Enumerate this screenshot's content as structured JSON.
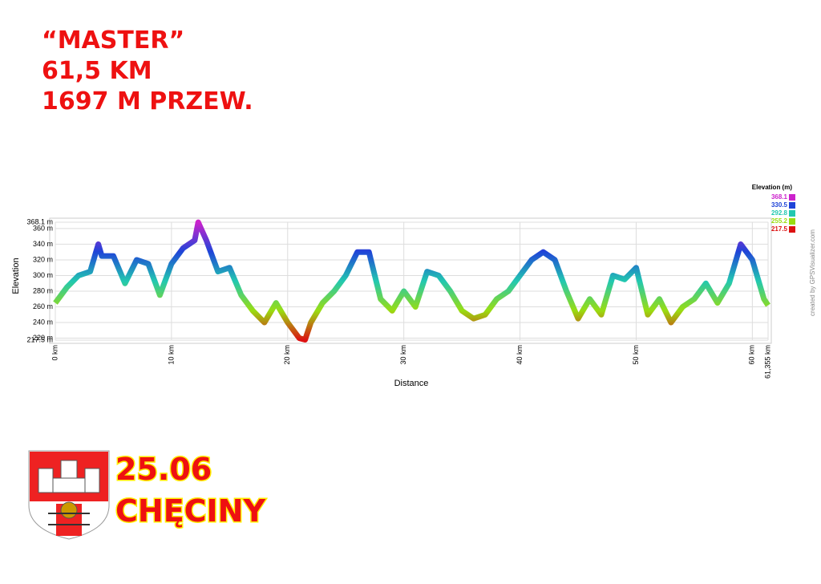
{
  "header": {
    "lines": [
      "“MASTER”",
      "61,5 KM",
      "1697 M PRZEW."
    ]
  },
  "footer": {
    "date": "25.06",
    "place": "CHĘCINY"
  },
  "chart_data": {
    "type": "line",
    "x_label": "Distance",
    "y_label": "Elevation",
    "credit": "created by GPSVisualizer.com",
    "x": [
      0,
      1,
      2,
      3,
      3.7,
      4,
      5,
      6,
      7,
      8,
      9,
      10,
      11,
      12,
      12.3,
      13,
      14,
      15,
      16,
      17,
      18,
      19,
      20,
      21,
      21.5,
      22,
      23,
      24,
      25,
      26,
      27,
      28,
      29,
      30,
      31,
      32,
      33,
      34,
      35,
      36,
      37,
      38,
      39,
      40,
      41,
      42,
      43,
      44,
      45,
      46,
      47,
      48,
      49,
      50,
      51,
      52,
      53,
      54,
      55,
      56,
      57,
      58,
      59,
      60,
      61,
      61.355
    ],
    "series": [
      {
        "values": [
          265,
          285,
          300,
          305,
          340,
          325,
          325,
          290,
          320,
          315,
          275,
          315,
          335,
          345,
          368,
          345,
          305,
          310,
          275,
          255,
          240,
          265,
          240,
          220,
          218,
          240,
          265,
          280,
          300,
          330,
          330,
          270,
          255,
          280,
          260,
          305,
          300,
          280,
          255,
          245,
          250,
          270,
          280,
          300,
          320,
          330,
          320,
          280,
          245,
          270,
          250,
          300,
          295,
          310,
          250,
          270,
          240,
          260,
          270,
          290,
          265,
          290,
          340,
          320,
          270,
          262
        ]
      }
    ],
    "xlim": [
      0,
      61.355
    ],
    "ylim": [
      217.5,
      368.1
    ],
    "xticks": [
      {
        "value": 0,
        "label": "0 km"
      },
      {
        "value": 10,
        "label": "10 km"
      },
      {
        "value": 20,
        "label": "20 km"
      },
      {
        "value": 30,
        "label": "30 km"
      },
      {
        "value": 40,
        "label": "40 km"
      },
      {
        "value": 50,
        "label": "50 km"
      },
      {
        "value": 60,
        "label": "60 km"
      },
      {
        "value": 61.355,
        "label": "61,355 km"
      }
    ],
    "yticks": [
      {
        "value": 217.5,
        "label": "217.5 m"
      },
      {
        "value": 220,
        "label": "220 m"
      },
      {
        "value": 240,
        "label": "240 m"
      },
      {
        "value": 260,
        "label": "260 m"
      },
      {
        "value": 280,
        "label": "280 m"
      },
      {
        "value": 300,
        "label": "300 m"
      },
      {
        "value": 320,
        "label": "320 m"
      },
      {
        "value": 340,
        "label": "340 m"
      },
      {
        "value": 360,
        "label": "360 m"
      },
      {
        "value": 368.1,
        "label": "368.1 m"
      }
    ],
    "grid": true,
    "color_scale": {
      "title": "Elevation (m)",
      "stops": [
        {
          "value": 368.1,
          "color": "#cc22cc"
        },
        {
          "value": 330.5,
          "color": "#1f44d8"
        },
        {
          "value": 292.8,
          "color": "#22c8b0"
        },
        {
          "value": 255.2,
          "color": "#99dd11"
        },
        {
          "value": 217.5,
          "color": "#dd1111"
        }
      ]
    }
  }
}
